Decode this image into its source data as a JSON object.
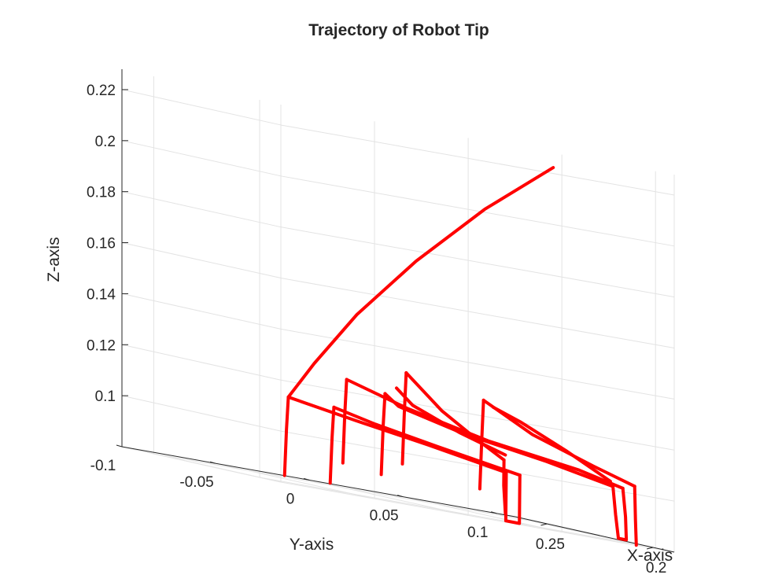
{
  "chart_data": {
    "type": "line",
    "projection": "3d",
    "title": "Trajectory of Robot Tip",
    "xlabel": "X-axis",
    "ylabel": "Y-axis",
    "zlabel": "Z-axis",
    "xlim": [
      0.19,
      0.265
    ],
    "ylim": [
      -0.1,
      0.11
    ],
    "zlim": [
      0.08,
      0.228
    ],
    "x_ticks": [
      0.2,
      0.25
    ],
    "x_tick_labels": [
      "0.2",
      "0.25"
    ],
    "y_ticks": [
      -0.1,
      -0.05,
      0,
      0.05,
      0.1
    ],
    "y_tick_labels": [
      "-0.1",
      "-0.05",
      "0",
      "0.05",
      "0.1"
    ],
    "z_ticks": [
      0.1,
      0.12,
      0.14,
      0.16,
      0.18,
      0.2,
      0.22
    ],
    "z_tick_labels": [
      "0.1",
      "0.12",
      "0.14",
      "0.16",
      "0.18",
      "0.2",
      "0.22"
    ],
    "grid": true,
    "line_color": "#ff0000",
    "paths": [
      {
        "pts": [
          [
            0.225,
            0.085,
            0.221
          ],
          [
            0.222,
            0.045,
            0.2
          ],
          [
            0.219,
            0.005,
            0.175
          ],
          [
            0.216,
            -0.03,
            0.15
          ],
          [
            0.214,
            -0.055,
            0.128
          ],
          [
            0.213,
            -0.07,
            0.113
          ]
        ]
      },
      {
        "pts": [
          [
            0.213,
            -0.07,
            0.113
          ],
          [
            0.213,
            -0.071,
            0.1
          ],
          [
            0.213,
            -0.072,
            0.082
          ]
        ]
      },
      {
        "pts": [
          [
            0.213,
            -0.07,
            0.113
          ],
          [
            0.225,
            -0.02,
            0.108
          ],
          [
            0.24,
            0.035,
            0.103
          ],
          [
            0.256,
            0.095,
            0.097
          ]
        ]
      },
      {
        "pts": [
          [
            0.256,
            0.095,
            0.097
          ],
          [
            0.257,
            0.096,
            0.088
          ],
          [
            0.258,
            0.097,
            0.078
          ],
          [
            0.256,
            0.102,
            0.078
          ],
          [
            0.255,
            0.101,
            0.088
          ],
          [
            0.254,
            0.1,
            0.097
          ]
        ]
      },
      {
        "pts": [
          [
            0.254,
            0.1,
            0.097
          ],
          [
            0.24,
            0.04,
            0.103
          ],
          [
            0.225,
            -0.01,
            0.108
          ],
          [
            0.218,
            -0.04,
            0.112
          ]
        ]
      },
      {
        "pts": [
          [
            0.218,
            -0.04,
            0.112
          ],
          [
            0.218,
            -0.041,
            0.1
          ],
          [
            0.218,
            -0.042,
            0.082
          ]
        ]
      },
      {
        "pts": [
          [
            0.212,
            -0.04,
            0.124
          ],
          [
            0.212,
            -0.041,
            0.11
          ],
          [
            0.212,
            -0.042,
            0.091
          ]
        ]
      },
      {
        "pts": [
          [
            0.212,
            -0.04,
            0.124
          ],
          [
            0.21,
            -0.01,
            0.117
          ],
          [
            0.207,
            0.03,
            0.11
          ],
          [
            0.204,
            0.075,
            0.105
          ],
          [
            0.201,
            0.095,
            0.101
          ]
        ]
      },
      {
        "pts": [
          [
            0.201,
            0.095,
            0.101
          ],
          [
            0.2015,
            0.097,
            0.09
          ],
          [
            0.202,
            0.098,
            0.081
          ],
          [
            0.204,
            0.096,
            0.081
          ],
          [
            0.2035,
            0.094,
            0.09
          ],
          [
            0.203,
            0.092,
            0.101
          ]
        ]
      },
      {
        "pts": [
          [
            0.203,
            0.092,
            0.101
          ],
          [
            0.206,
            0.06,
            0.106
          ],
          [
            0.21,
            0.02,
            0.111
          ],
          [
            0.214,
            -0.01,
            0.117
          ],
          [
            0.216,
            -0.015,
            0.121
          ]
        ]
      },
      {
        "pts": [
          [
            0.216,
            -0.015,
            0.121
          ],
          [
            0.216,
            -0.016,
            0.108
          ],
          [
            0.216,
            -0.017,
            0.089
          ]
        ]
      },
      {
        "pts": [
          [
            0.206,
            -0.015,
            0.131
          ],
          [
            0.206,
            -0.016,
            0.115
          ],
          [
            0.206,
            -0.017,
            0.095
          ]
        ]
      },
      {
        "pts": [
          [
            0.206,
            -0.015,
            0.131
          ],
          [
            0.22,
            0.02,
            0.118
          ],
          [
            0.235,
            0.055,
            0.109
          ],
          [
            0.25,
            0.087,
            0.102
          ]
        ]
      },
      {
        "pts": [
          [
            0.25,
            0.087,
            0.102
          ],
          [
            0.251,
            0.088,
            0.092
          ],
          [
            0.252,
            0.09,
            0.081
          ]
        ]
      },
      {
        "pts": [
          [
            0.252,
            0.09,
            0.104
          ],
          [
            0.238,
            0.05,
            0.11
          ],
          [
            0.225,
            0.01,
            0.118
          ],
          [
            0.215,
            -0.01,
            0.124
          ]
        ]
      },
      {
        "pts": [
          [
            0.196,
            0.015,
            0.126
          ],
          [
            0.196,
            0.014,
            0.11
          ],
          [
            0.196,
            0.013,
            0.091
          ]
        ]
      },
      {
        "pts": [
          [
            0.196,
            0.015,
            0.126
          ],
          [
            0.195,
            0.04,
            0.116
          ],
          [
            0.193,
            0.07,
            0.108
          ],
          [
            0.191,
            0.09,
            0.103
          ]
        ]
      },
      {
        "pts": [
          [
            0.191,
            0.09,
            0.103
          ],
          [
            0.1915,
            0.091,
            0.09
          ],
          [
            0.192,
            0.092,
            0.08
          ]
        ]
      },
      {
        "pts": [
          [
            0.198,
            0.085,
            0.103
          ],
          [
            0.197,
            0.06,
            0.112
          ],
          [
            0.196,
            0.035,
            0.12
          ],
          [
            0.196,
            0.02,
            0.124
          ]
        ]
      }
    ]
  }
}
